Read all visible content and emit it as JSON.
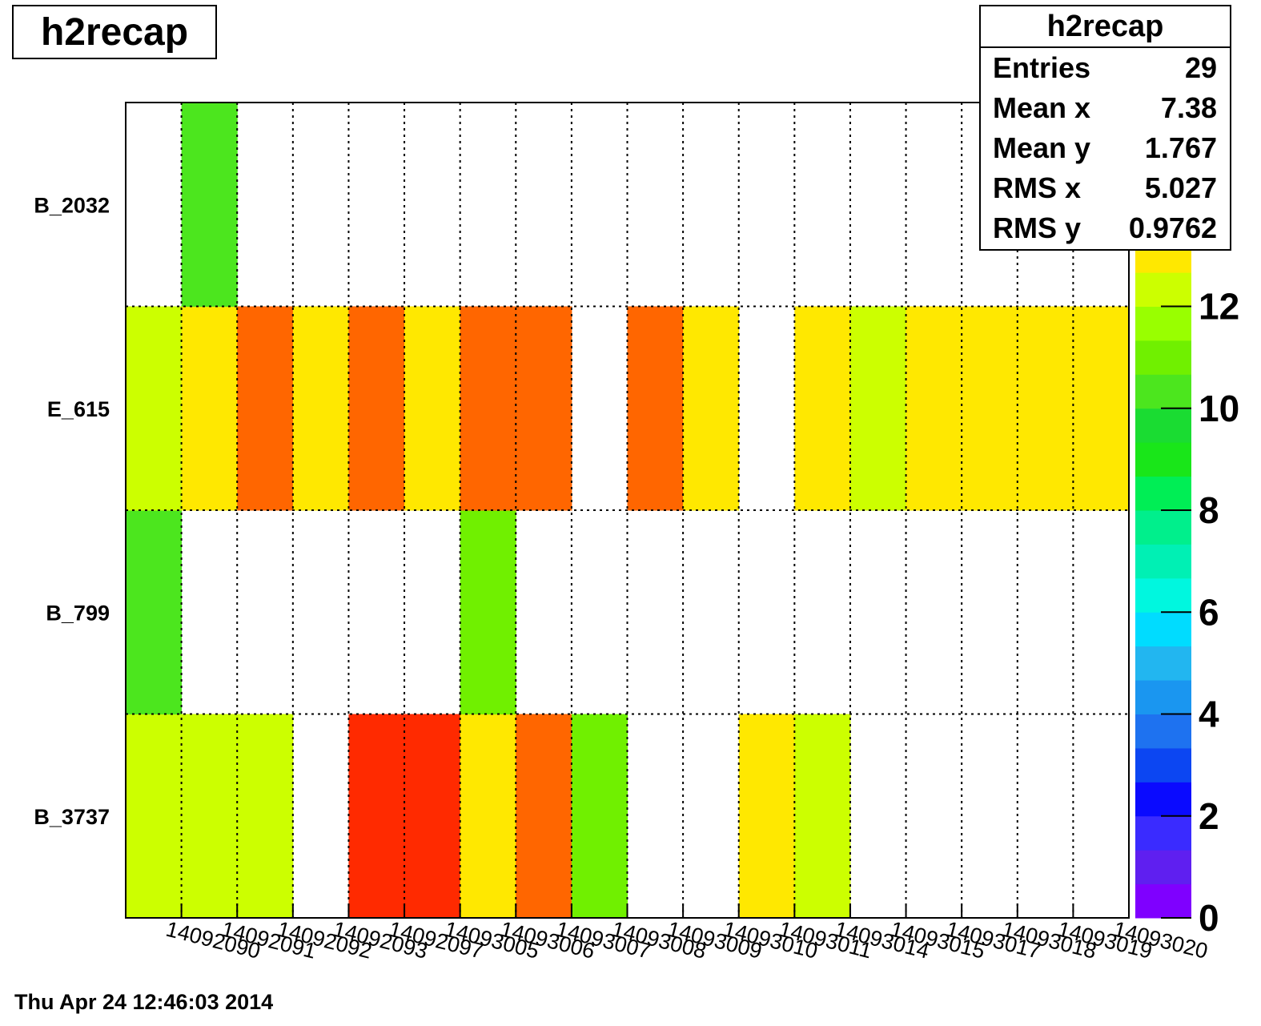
{
  "title": "h2recap",
  "stats": {
    "title": "h2recap",
    "rows": [
      {
        "label": "Entries",
        "value": "29"
      },
      {
        "label": "Mean x",
        "value": "7.38"
      },
      {
        "label": "Mean y",
        "value": "1.767"
      },
      {
        "label": "RMS x",
        "value": "5.027"
      },
      {
        "label": "RMS y",
        "value": "0.9762"
      }
    ]
  },
  "timestamp": "Thu Apr 24 12:46:03 2014",
  "chart_data": {
    "type": "heatmap",
    "title": "h2recap",
    "x_categories": [
      "14092090",
      "14092091",
      "14092092",
      "14092093",
      "14092097",
      "14093005",
      "14093006",
      "14093007",
      "14093008",
      "14093009",
      "14093010",
      "14093011",
      "14093014",
      "14093015",
      "14093017",
      "14093018",
      "14093019",
      "14093020"
    ],
    "y_categories": [
      "B_3737",
      "B_799",
      "E_615",
      "B_2032"
    ],
    "values": [
      [
        12,
        12,
        12,
        null,
        15,
        15,
        13,
        14,
        11,
        null,
        null,
        13,
        12,
        null,
        null,
        null,
        null,
        null
      ],
      [
        10,
        null,
        null,
        null,
        null,
        null,
        11,
        null,
        null,
        null,
        null,
        null,
        null,
        null,
        null,
        null,
        null,
        null
      ],
      [
        12,
        13,
        14,
        13,
        14,
        13,
        14,
        14,
        null,
        14.5,
        13,
        null,
        13,
        12,
        13,
        13,
        13,
        13
      ],
      [
        null,
        10,
        null,
        null,
        null,
        null,
        null,
        null,
        null,
        null,
        null,
        null,
        null,
        null,
        null,
        null,
        null,
        null
      ]
    ],
    "zlim": [
      0,
      16
    ],
    "z_ticks": [
      "0",
      "2",
      "4",
      "6",
      "8",
      "10",
      "12"
    ],
    "palette": [
      "#7f00ff",
      "#5f1ff0",
      "#3a2bff",
      "#0a0aff",
      "#0c46f2",
      "#1e72f0",
      "#1a96f0",
      "#22b6f0",
      "#00dcff",
      "#00f7df",
      "#00f0b4",
      "#00ef8c",
      "#00ee55",
      "#19e619",
      "#1adc32",
      "#4ce61e",
      "#70f000",
      "#99ff00",
      "#ccff00",
      "#ffe800",
      "#ffaa00",
      "#ff6600",
      "#ff2a00",
      "#ff0000"
    ],
    "grid": true,
    "legend": "right color scale"
  }
}
